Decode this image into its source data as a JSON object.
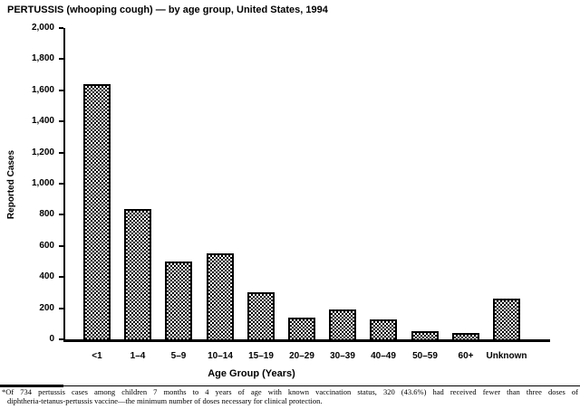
{
  "chart_data": {
    "type": "bar",
    "title": "PERTUSSIS (whooping cough) — by age group, United States, 1994",
    "xlabel": "Age Group (Years)",
    "ylabel": "Reported Cases",
    "ylim": [
      0,
      2000
    ],
    "ytick_step": 200,
    "yticks": [
      0,
      200,
      400,
      600,
      800,
      1000,
      1200,
      1400,
      1600,
      1800,
      2000
    ],
    "categories": [
      "<1",
      "1–4",
      "5–9",
      "10–14",
      "15–19",
      "20–29",
      "30–39",
      "40–49",
      "50–59",
      "60+",
      "Unknown"
    ],
    "values": [
      1640,
      840,
      500,
      550,
      300,
      140,
      190,
      130,
      50,
      40,
      260
    ],
    "grid": false,
    "legend": false,
    "bar_fill": "black-white checkerboard hatch pattern",
    "bar_border_color": "#000000",
    "axis_color": "#000000",
    "background_color": "#ffffff"
  },
  "footnote": {
    "line1": "*Of 734 pertussis cases among children 7 months to 4 years of age with known vaccination status, 320 (43.6%) had received fewer than three doses of",
    "line2": "diphtheria-tetanus-pertussis vaccine—the minimum number of doses necessary for clinical protection."
  }
}
